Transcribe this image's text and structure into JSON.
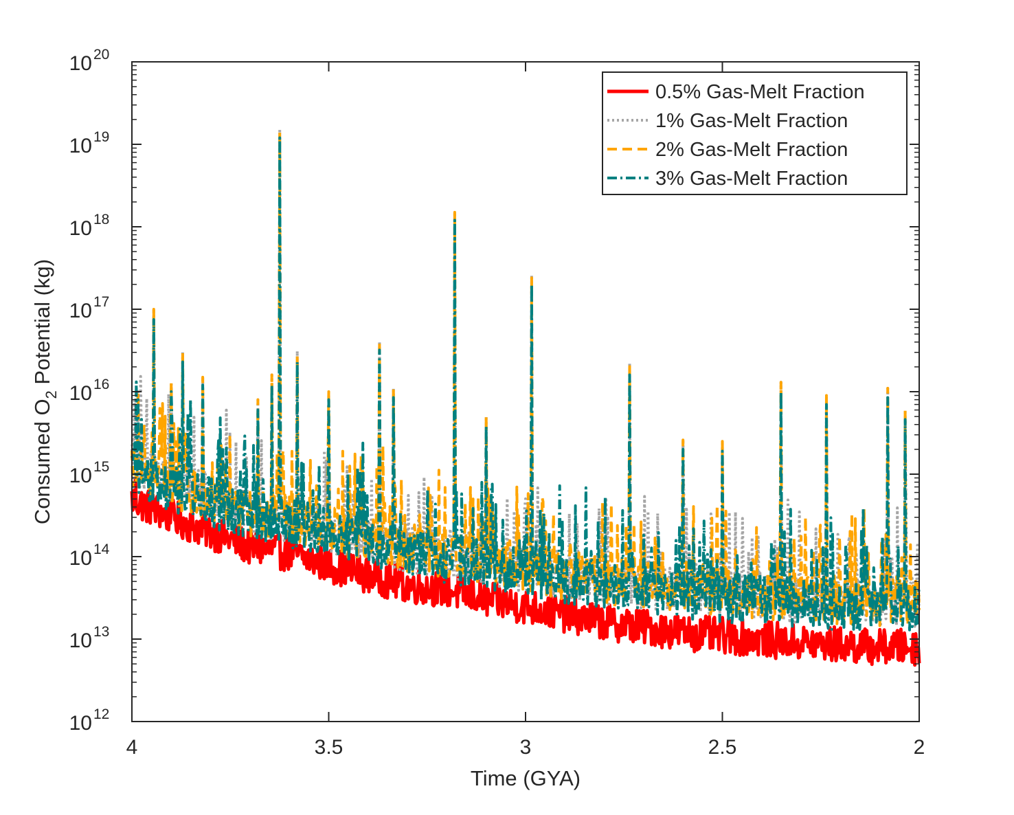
{
  "chart_data": {
    "type": "line",
    "title": "",
    "xlabel": "Time (GYA)",
    "ylabel": {
      "prefix": "Consumed O",
      "subscript": "2",
      "suffix": " Potential (kg)"
    },
    "x_axis": {
      "reversed": true,
      "xlim": [
        4,
        2
      ],
      "ticks": [
        4,
        3.5,
        3,
        2.5,
        2
      ],
      "tick_labels": [
        "4",
        "3.5",
        "3",
        "2.5",
        "2"
      ]
    },
    "y_axis": {
      "scale": "log",
      "ylim": [
        1000000000000.0,
        1e+20
      ],
      "ticks": [
        12,
        13,
        14,
        15,
        16,
        17,
        18,
        19,
        20
      ],
      "tick_labels": [
        {
          "base": "10",
          "exp": "12"
        },
        {
          "base": "10",
          "exp": "13"
        },
        {
          "base": "10",
          "exp": "14"
        },
        {
          "base": "10",
          "exp": "15"
        },
        {
          "base": "10",
          "exp": "16"
        },
        {
          "base": "10",
          "exp": "17"
        },
        {
          "base": "10",
          "exp": "18"
        },
        {
          "base": "10",
          "exp": "19"
        },
        {
          "base": "10",
          "exp": "20"
        }
      ]
    },
    "grid": false,
    "legend_position": "top-right",
    "series": [
      {
        "name": "0.5% Gas-Melt Fraction",
        "color": "#ff0000",
        "dash": "solid",
        "baseline": {
          "x": [
            4.0,
            3.9,
            3.8,
            3.7,
            3.6,
            3.5,
            3.4,
            3.3,
            3.2,
            3.1,
            3.0,
            2.9,
            2.8,
            2.7,
            2.6,
            2.5,
            2.4,
            2.3,
            2.2,
            2.1,
            2.0
          ],
          "y": [
            500000000000000.0,
            300000000000000.0,
            200000000000000.0,
            130000000000000.0,
            110000000000000.0,
            80000000000000.0,
            60000000000000.0,
            45000000000000.0,
            40000000000000.0,
            30000000000000.0,
            25000000000000.0,
            20000000000000.0,
            16000000000000.0,
            14000000000000.0,
            12000000000000.0,
            11000000000000.0,
            10000000000000.0,
            9000000000000.0,
            8500000000000.0,
            8000000000000.0,
            8000000000000.0
          ]
        },
        "spikes": [
          {
            "x": 3.99,
            "y": 900000000000000.0
          },
          {
            "x": 3.95,
            "y": 600000000000000.0
          },
          {
            "x": 3.9,
            "y": 450000000000000.0
          }
        ]
      },
      {
        "name": "1% Gas-Melt Fraction",
        "color": "#a6a6a6",
        "dash": "dotted",
        "baseline": {
          "x": [
            4.0,
            3.9,
            3.8,
            3.7,
            3.6,
            3.5,
            3.4,
            3.3,
            3.2,
            3.1,
            3.0,
            2.9,
            2.8,
            2.7,
            2.6,
            2.5,
            2.4,
            2.3,
            2.2,
            2.1,
            2.0
          ],
          "y": [
            1400000000000000.0,
            800000000000000.0,
            500000000000000.0,
            350000000000000.0,
            300000000000000.0,
            220000000000000.0,
            170000000000000.0,
            130000000000000.0,
            110000000000000.0,
            90000000000000.0,
            75000000000000.0,
            60000000000000.0,
            50000000000000.0,
            45000000000000.0,
            40000000000000.0,
            37000000000000.0,
            34000000000000.0,
            31000000000000.0,
            30000000000000.0,
            29000000000000.0,
            28000000000000.0
          ]
        },
        "spikes": [
          {
            "x": 3.945,
            "y": 1e+17
          },
          {
            "x": 3.625,
            "y": 1.5e+19
          },
          {
            "x": 3.18,
            "y": 1.5e+18
          },
          {
            "x": 2.985,
            "y": 2.6e+17
          },
          {
            "x": 3.87,
            "y": 3e+16
          },
          {
            "x": 3.58,
            "y": 3.1e+16
          },
          {
            "x": 3.37,
            "y": 4.1e+16
          },
          {
            "x": 2.735,
            "y": 2.2e+16
          },
          {
            "x": 3.5,
            "y": 1e+16
          },
          {
            "x": 3.335,
            "y": 1.1e+16
          },
          {
            "x": 2.35,
            "y": 1.3e+16
          },
          {
            "x": 2.08,
            "y": 1.1e+16
          },
          {
            "x": 2.235,
            "y": 9000000000000000.0
          },
          {
            "x": 2.33,
            "y": 1e+16
          },
          {
            "x": 3.985,
            "y": 1e+16
          },
          {
            "x": 3.82,
            "y": 1.5e+16
          },
          {
            "x": 3.68,
            "y": 8000000000000000.0
          },
          {
            "x": 3.645,
            "y": 1.6e+16
          },
          {
            "x": 3.1,
            "y": 5000000000000000.0
          },
          {
            "x": 2.5,
            "y": 2500000000000000.0
          },
          {
            "x": 2.6,
            "y": 2600000000000000.0
          },
          {
            "x": 2.41,
            "y": 4300000000000000.0
          },
          {
            "x": 2.035,
            "y": 6000000000000000.0
          },
          {
            "x": 3.9,
            "y": 1.3e+16
          }
        ]
      },
      {
        "name": "2% Gas-Melt Fraction",
        "color": "#ffa500",
        "dash": "dashed",
        "baseline": {
          "x": [
            4.0,
            3.9,
            3.8,
            3.7,
            3.6,
            3.5,
            3.4,
            3.3,
            3.2,
            3.1,
            3.0,
            2.9,
            2.8,
            2.7,
            2.6,
            2.5,
            2.4,
            2.3,
            2.2,
            2.1,
            2.0
          ],
          "y": [
            1400000000000000.0,
            800000000000000.0,
            500000000000000.0,
            350000000000000.0,
            300000000000000.0,
            220000000000000.0,
            170000000000000.0,
            130000000000000.0,
            110000000000000.0,
            90000000000000.0,
            75000000000000.0,
            60000000000000.0,
            50000000000000.0,
            45000000000000.0,
            40000000000000.0,
            37000000000000.0,
            34000000000000.0,
            31000000000000.0,
            30000000000000.0,
            29000000000000.0,
            28000000000000.0
          ]
        },
        "spikes": [
          {
            "x": 3.945,
            "y": 1e+17
          },
          {
            "x": 3.625,
            "y": 1.4e+19
          },
          {
            "x": 3.18,
            "y": 1.5e+18
          },
          {
            "x": 2.985,
            "y": 2.4e+17
          },
          {
            "x": 3.87,
            "y": 3e+16
          },
          {
            "x": 3.58,
            "y": 2.8e+16
          },
          {
            "x": 3.37,
            "y": 4.1e+16
          },
          {
            "x": 2.735,
            "y": 2.2e+16
          },
          {
            "x": 3.5,
            "y": 1e+16
          },
          {
            "x": 3.335,
            "y": 1.1e+16
          },
          {
            "x": 2.35,
            "y": 1.3e+16
          },
          {
            "x": 2.08,
            "y": 1.1e+16
          },
          {
            "x": 2.235,
            "y": 9000000000000000.0
          },
          {
            "x": 2.33,
            "y": 1e+16
          },
          {
            "x": 3.985,
            "y": 1e+16
          },
          {
            "x": 3.82,
            "y": 1.5e+16
          },
          {
            "x": 3.68,
            "y": 8000000000000000.0
          },
          {
            "x": 3.645,
            "y": 1.6e+16
          },
          {
            "x": 3.1,
            "y": 5000000000000000.0
          },
          {
            "x": 2.5,
            "y": 2500000000000000.0
          },
          {
            "x": 2.6,
            "y": 2600000000000000.0
          },
          {
            "x": 2.41,
            "y": 4300000000000000.0
          },
          {
            "x": 2.035,
            "y": 6000000000000000.0
          },
          {
            "x": 3.9,
            "y": 1.3e+16
          }
        ]
      },
      {
        "name": "3% Gas-Melt Fraction",
        "color": "#008080",
        "dash": "dashdot",
        "baseline": {
          "x": [
            4.0,
            3.9,
            3.8,
            3.7,
            3.6,
            3.5,
            3.4,
            3.3,
            3.2,
            3.1,
            3.0,
            2.9,
            2.8,
            2.7,
            2.6,
            2.5,
            2.4,
            2.3,
            2.2,
            2.1,
            2.0
          ],
          "y": [
            1200000000000000.0,
            700000000000000.0,
            450000000000000.0,
            300000000000000.0,
            260000000000000.0,
            190000000000000.0,
            150000000000000.0,
            110000000000000.0,
            95000000000000.0,
            80000000000000.0,
            65000000000000.0,
            52000000000000.0,
            44000000000000.0,
            40000000000000.0,
            35000000000000.0,
            32000000000000.0,
            30000000000000.0,
            27000000000000.0,
            26000000000000.0,
            25000000000000.0,
            24000000000000.0
          ]
        },
        "spikes": [
          {
            "x": 3.945,
            "y": 7.5e+16
          },
          {
            "x": 3.625,
            "y": 1.2e+19
          },
          {
            "x": 3.18,
            "y": 1.2e+18
          },
          {
            "x": 2.985,
            "y": 2e+17
          },
          {
            "x": 3.87,
            "y": 2.3e+16
          },
          {
            "x": 3.58,
            "y": 2.3e+16
          },
          {
            "x": 3.37,
            "y": 3.2e+16
          },
          {
            "x": 2.735,
            "y": 1.6e+16
          },
          {
            "x": 3.5,
            "y": 8000000000000000.0
          },
          {
            "x": 3.335,
            "y": 8500000000000000.0
          },
          {
            "x": 2.35,
            "y": 1e+16
          },
          {
            "x": 2.08,
            "y": 8500000000000000.0
          },
          {
            "x": 2.235,
            "y": 7000000000000000.0
          },
          {
            "x": 2.33,
            "y": 7500000000000000.0
          },
          {
            "x": 3.985,
            "y": 8000000000000000.0
          },
          {
            "x": 3.82,
            "y": 1.2e+16
          },
          {
            "x": 3.68,
            "y": 6000000000000000.0
          },
          {
            "x": 3.645,
            "y": 1.2e+16
          },
          {
            "x": 3.1,
            "y": 3800000000000000.0
          },
          {
            "x": 2.5,
            "y": 1900000000000000.0
          },
          {
            "x": 2.6,
            "y": 2000000000000000.0
          },
          {
            "x": 2.41,
            "y": 3300000000000000.0
          },
          {
            "x": 2.035,
            "y": 4600000000000000.0
          },
          {
            "x": 3.9,
            "y": 1e+16
          }
        ]
      }
    ]
  }
}
